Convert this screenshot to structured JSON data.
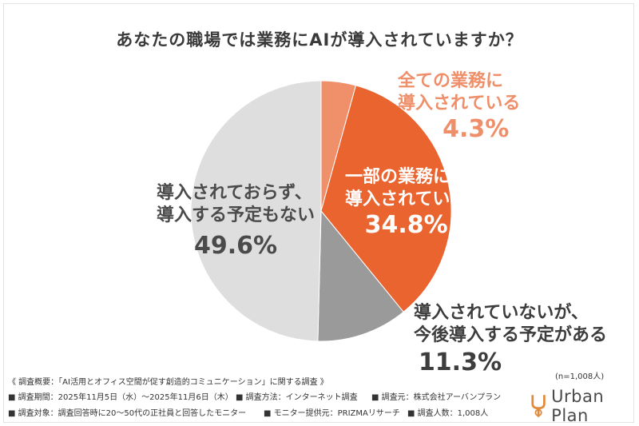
{
  "chart_data": {
    "type": "pie",
    "title": "あなたの職場では業務にAIが導入されていますか？",
    "slices": [
      {
        "label_line1": "全ての業務に",
        "label_line2": "導入されている",
        "value": 4.3,
        "value_text": "4.3%",
        "color": "#f0906b"
      },
      {
        "label_line1": "一部の業務に",
        "label_line2": "導入されている",
        "value": 34.8,
        "value_text": "34.8%",
        "color": "#ea6430"
      },
      {
        "label_line1": "導入されていないが、",
        "label_line2": "今後導入する予定がある",
        "value": 11.3,
        "value_text": "11.3%",
        "color": "#9a9a9a"
      },
      {
        "label_line1": "導入されておらず、",
        "label_line2": "導入する予定もない",
        "value": 49.6,
        "value_text": "49.6%",
        "color": "#dedede"
      }
    ],
    "sample_size": "(n=1,008人)"
  },
  "footer": {
    "line1": "《 調査概要：「AI活用とオフィス空間が促す創造的コミュニケーション」に関する調査 》",
    "period": "■ 調査期間：2025年11月5日（水）〜2025年11月6日（木）",
    "method": "■ 調査方法：インターネット調査",
    "source": "■ 調査元：株式会社アーバンプラン",
    "target": "■ 調査対象：調査回答時に20〜50代の正社員と回答したモニター",
    "provider": "■ モニター提供元：PRIZMAリサーチ",
    "count": "■ 調査人数：1,008人"
  },
  "logo": {
    "brand": "Urban Plan",
    "color": "#e08a3c"
  }
}
